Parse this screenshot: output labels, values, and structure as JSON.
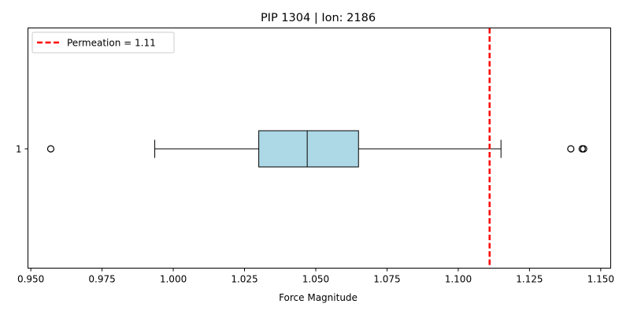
{
  "chart_data": {
    "type": "box",
    "title": "PIP 1304 | Ion: 2186",
    "xlabel": "Force Magnitude",
    "ylabel": "",
    "xlim": [
      0.949,
      1.1535
    ],
    "x_ticks": [
      "0.950",
      "0.975",
      "1.000",
      "1.025",
      "1.050",
      "1.075",
      "1.100",
      "1.125",
      "1.150"
    ],
    "y_ticks": [
      "1"
    ],
    "box": {
      "category": "1",
      "whisker_low": 0.9935,
      "q1": 1.03,
      "median": 1.047,
      "q3": 1.065,
      "whisker_high": 1.115,
      "outliers": [
        0.957,
        1.1395,
        1.1435,
        1.144
      ],
      "fill_color": "#add8e6"
    },
    "reference_line": {
      "value": 1.111,
      "label": "Permeation = 1.11",
      "color": "#ff0000",
      "style": "dashed"
    },
    "legend_position": "top-left",
    "grid": false
  }
}
